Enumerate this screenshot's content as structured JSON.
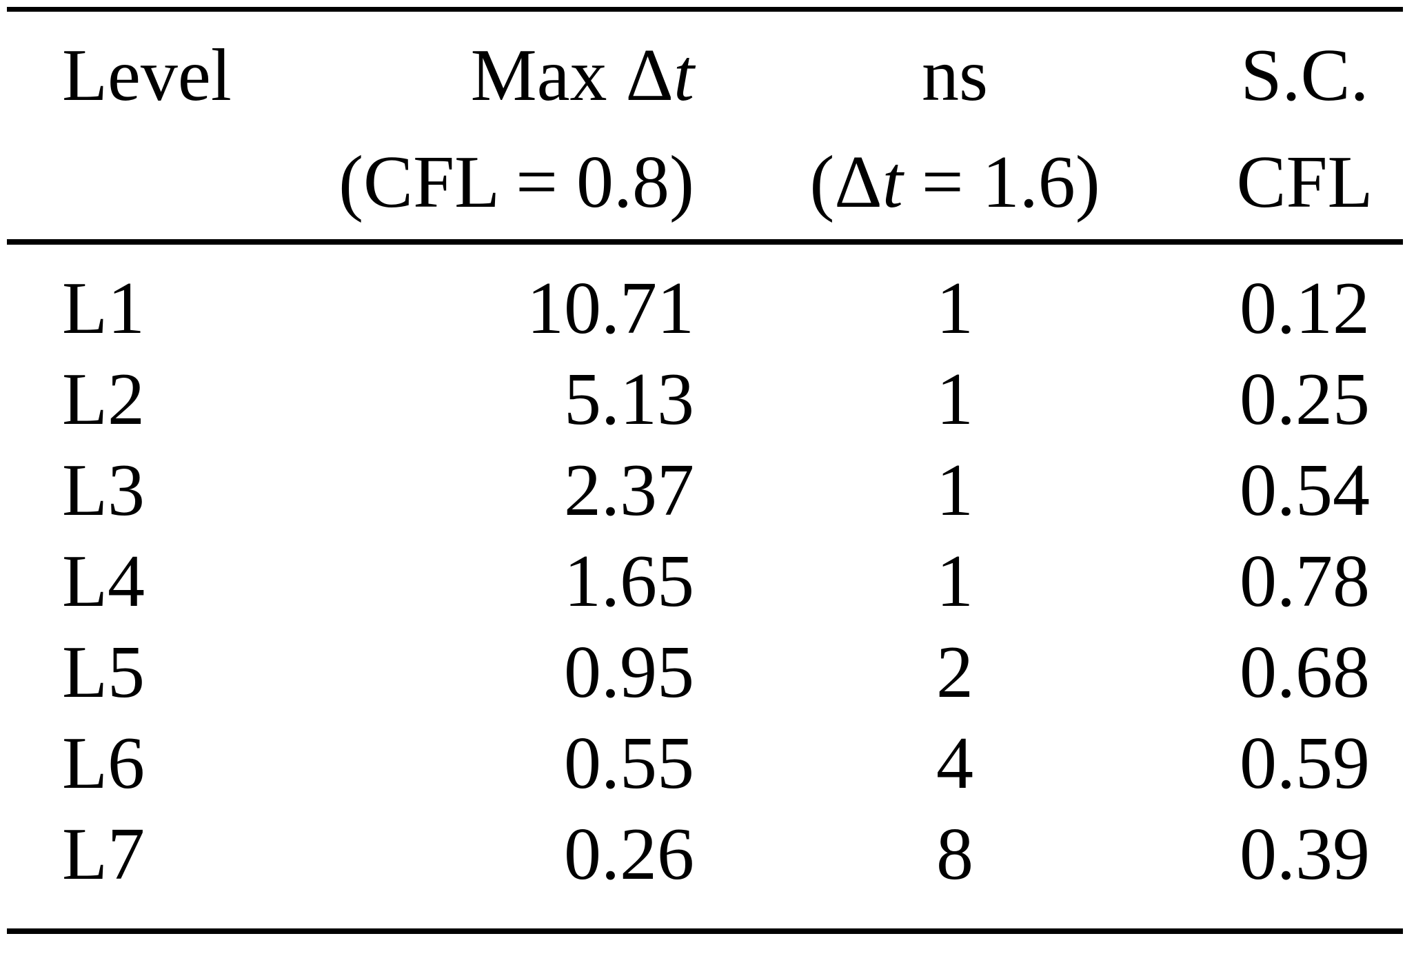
{
  "table": {
    "headers": {
      "col1": {
        "line1": "Level",
        "line2": ""
      },
      "col2": {
        "line1_text": "Max Δ",
        "line1_italic": "t",
        "line2": "(CFL = 0.8)"
      },
      "col3": {
        "line1": "ns",
        "line2_open": "(Δ",
        "line2_italic": "t",
        "line2_rest": " = 1.6)"
      },
      "col4": {
        "line1": "S.C.",
        "line2": "CFL"
      }
    },
    "rows": [
      {
        "level": "L1",
        "max_dt": "10.71",
        "ns": "1",
        "sc_cfl": "0.12"
      },
      {
        "level": "L2",
        "max_dt": "5.13",
        "ns": "1",
        "sc_cfl": "0.25"
      },
      {
        "level": "L3",
        "max_dt": "2.37",
        "ns": "1",
        "sc_cfl": "0.54"
      },
      {
        "level": "L4",
        "max_dt": "1.65",
        "ns": "1",
        "sc_cfl": "0.78"
      },
      {
        "level": "L5",
        "max_dt": "0.95",
        "ns": "2",
        "sc_cfl": "0.68"
      },
      {
        "level": "L6",
        "max_dt": "0.55",
        "ns": "4",
        "sc_cfl": "0.59"
      },
      {
        "level": "L7",
        "max_dt": "0.26",
        "ns": "8",
        "sc_cfl": "0.39"
      }
    ]
  },
  "colors": {
    "text": "#000000",
    "rule": "#000000",
    "background": "#ffffff"
  }
}
